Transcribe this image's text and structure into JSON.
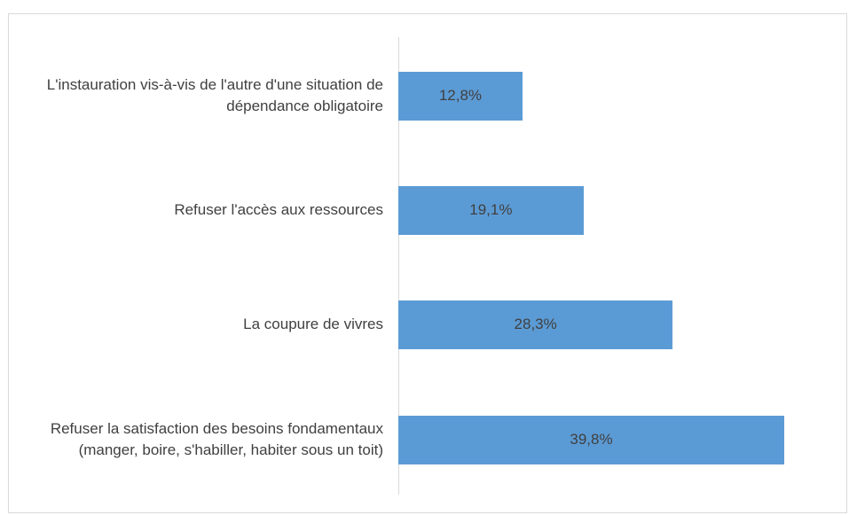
{
  "chart_data": {
    "type": "bar",
    "orientation": "horizontal",
    "categories": [
      "L'instauration vis-à-vis de l'autre d'une situation de dépendance obligatoire",
      "Refuser l'accès aux ressources",
      "La coupure de vivres",
      "Refuser la satisfaction des besoins fondamentaux (manger, boire, s'habiller, habiter sous un toit)"
    ],
    "values": [
      12.8,
      19.1,
      28.3,
      39.8
    ],
    "value_labels": [
      "12,8%",
      "19,1%",
      "28,3%",
      "39,8%"
    ],
    "color": "#5b9bd5"
  }
}
